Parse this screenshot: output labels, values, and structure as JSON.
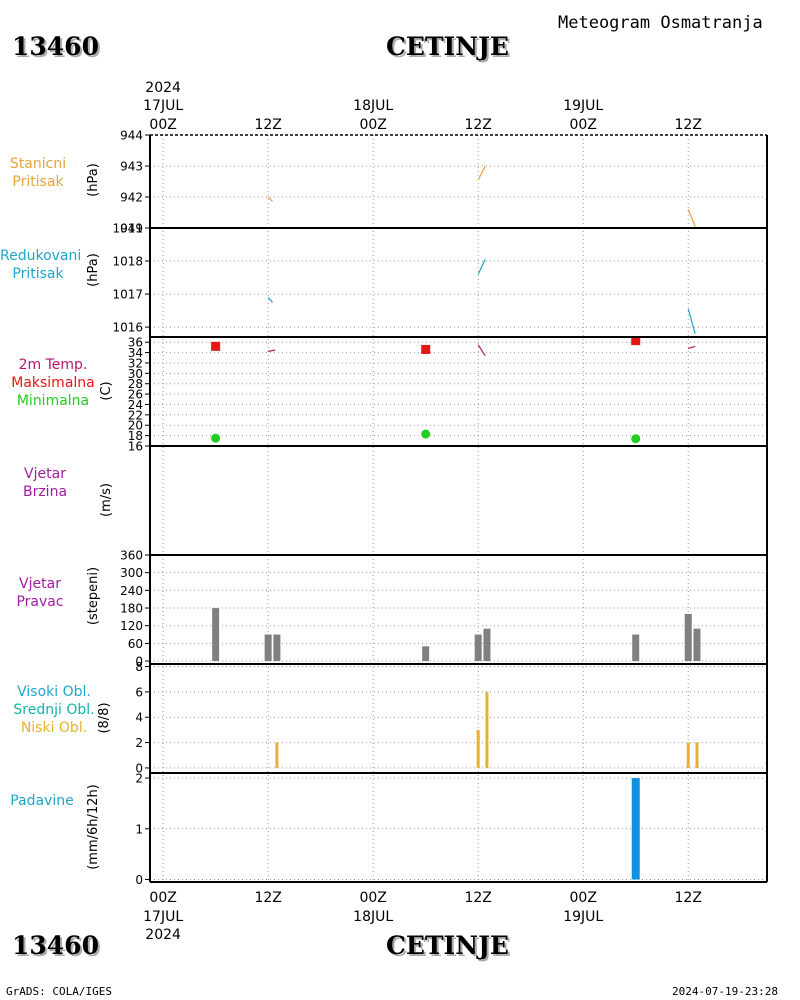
{
  "header": {
    "station_id": "13460",
    "station_name": "CETINJE",
    "title": "Meteogram Osmatranja"
  },
  "footer": {
    "credit": "GrADS: COLA/IGES",
    "timestamp": "2024-07-19-23:28"
  },
  "colors": {
    "orange": "#e8a33c",
    "cyan": "#1fa6c8",
    "magenta": "#b5176e",
    "red": "#e41616",
    "green": "#22cc22",
    "purple": "#a01ca0",
    "gray": "#808080",
    "teal": "#14b4a8",
    "gold": "#e8b030",
    "blue": "#1090e0"
  },
  "time_axis": {
    "year": "2024",
    "hours": [
      "00Z",
      "12Z",
      "00Z",
      "12Z",
      "00Z",
      "12Z"
    ],
    "hour_positions": [
      0,
      12,
      24,
      36,
      48,
      60
    ],
    "days": [
      "17JUL",
      "18JUL",
      "19JUL"
    ],
    "day_positions": [
      0,
      24,
      48
    ],
    "range": [
      -1.5,
      69
    ]
  },
  "chart_data": [
    {
      "name": "stanicni-pritisak",
      "type": "line",
      "label_lines": [
        "Stanicni",
        "Pritisak"
      ],
      "unit": "(hPa)",
      "ylim": [
        941,
        944
      ],
      "yticks": [
        941,
        942,
        943,
        944
      ],
      "segments": [
        [
          [
            12,
            942.0
          ],
          [
            12.5,
            941.85
          ]
        ],
        [
          [
            36,
            942.55
          ],
          [
            36.8,
            943.0
          ]
        ],
        [
          [
            60,
            941.6
          ],
          [
            60.8,
            941.05
          ]
        ]
      ]
    },
    {
      "name": "redukovani-pritisak",
      "type": "line",
      "label_lines": [
        "Redukovani",
        "Pritisak"
      ],
      "unit": "(hPa)",
      "ylim": [
        1015.7,
        1019
      ],
      "yticks": [
        1016,
        1017,
        1018,
        1019
      ],
      "segments": [
        [
          [
            12,
            1016.9
          ],
          [
            12.5,
            1016.75
          ]
        ],
        [
          [
            36,
            1017.6
          ],
          [
            36.8,
            1018.05
          ]
        ],
        [
          [
            60,
            1016.55
          ],
          [
            60.8,
            1015.8
          ]
        ]
      ]
    },
    {
      "name": "temperatura",
      "type": "line",
      "label_lines": [
        "2m Temp.",
        "Maksimalna",
        "Minimalna"
      ],
      "unit": "(C)",
      "ylim": [
        16,
        37
      ],
      "yticks": [
        16,
        18,
        20,
        22,
        24,
        26,
        28,
        30,
        32,
        34,
        36
      ],
      "segments": [
        [
          [
            12,
            34.2
          ],
          [
            12.8,
            34.5
          ]
        ],
        [
          [
            36,
            35.5
          ],
          [
            36.8,
            33.4
          ]
        ],
        [
          [
            60,
            34.8
          ],
          [
            60.8,
            35.2
          ]
        ]
      ],
      "max_points": [
        [
          6,
          35.2
        ],
        [
          30,
          34.6
        ],
        [
          54,
          36.3
        ]
      ],
      "min_points": [
        [
          6,
          17.5
        ],
        [
          30,
          18.3
        ],
        [
          54,
          17.4
        ]
      ]
    },
    {
      "name": "vjetar-brzina",
      "type": "bar",
      "label_lines": [
        "Vjetar",
        "Brzina"
      ],
      "unit": "(m/s)",
      "values": []
    },
    {
      "name": "vjetar-pravac",
      "type": "bar",
      "label_lines": [
        "Vjetar",
        "Pravac"
      ],
      "unit": "(stepeni)",
      "ylim": [
        -10,
        360
      ],
      "yticks": [
        0,
        60,
        120,
        180,
        240,
        300,
        360
      ],
      "x": [
        6,
        12,
        13,
        30,
        36,
        37,
        54,
        60,
        61
      ],
      "values": [
        180,
        90,
        90,
        50,
        90,
        110,
        90,
        160,
        110
      ]
    },
    {
      "name": "oblacnost",
      "type": "bar",
      "label_lines": [
        "Visoki Obl.",
        "Srednji Obl.",
        "Niski Obl."
      ],
      "unit": "(8/8)",
      "ylim": [
        -0.4,
        8.2
      ],
      "yticks": [
        0,
        2,
        4,
        6,
        8
      ],
      "x": [
        13,
        36,
        37,
        60,
        61
      ],
      "values": [
        2,
        3,
        6,
        2,
        2
      ]
    },
    {
      "name": "padavine",
      "type": "bar",
      "label_lines": [
        "Padavine"
      ],
      "unit": "(mm/6h/12h)",
      "ylim": [
        -0.05,
        2.1
      ],
      "yticks": [
        0,
        1,
        2
      ],
      "x": [
        54
      ],
      "values": [
        2.0
      ]
    }
  ]
}
